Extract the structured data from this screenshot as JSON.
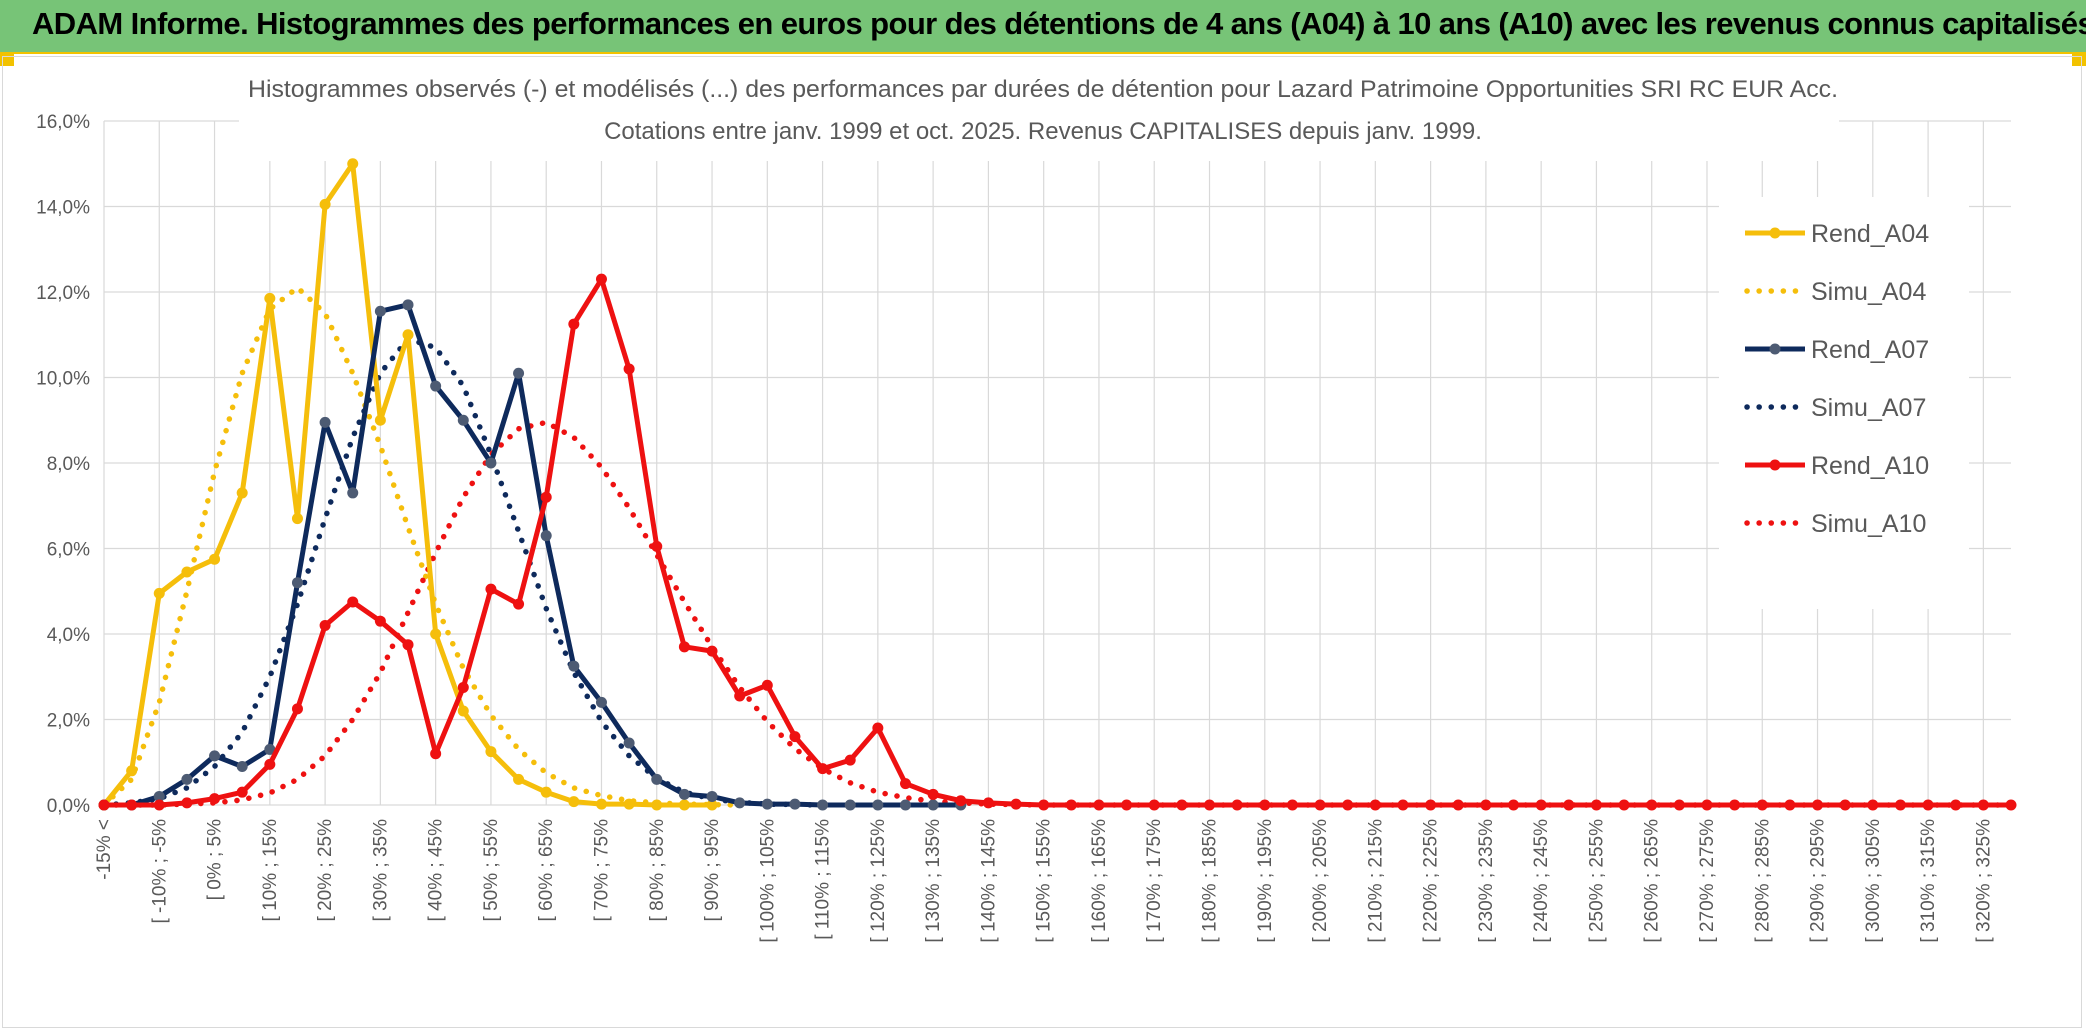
{
  "banner": {
    "title": "ADAM Informe. Histogrammes des performances en euros pour des détentions de 4 ans (A04) à 10 ans (A10) avec les revenus connus capitalisés"
  },
  "colors": {
    "banner_bg": "#77c477",
    "A04": "#f5be0b",
    "A07": "#0e2a5c",
    "A10": "#ee1111",
    "grid": "#d9d9d9",
    "text": "#595959"
  },
  "chart_data": {
    "type": "line",
    "title_line1": "Histogrammes observés (-) et modélisés (...) des performances par durées de détention pour Lazard Patrimoine Opportunities SRI RC EUR Acc.",
    "title_line2": "Cotations entre janv. 1999 et oct. 2025. Revenus CAPITALISES depuis janv. 1999.",
    "ylim": [
      0,
      16
    ],
    "y_ticks": [
      "0,0%",
      "2,0%",
      "4,0%",
      "6,0%",
      "8,0%",
      "10,0%",
      "12,0%",
      "14,0%",
      "16,0%"
    ],
    "grid": true,
    "legend_position": "right",
    "x_labels": [
      "-15% <",
      "[ -10% ; -5%",
      "[ 0% ; 5%",
      "[ 10% ; 15%",
      "[ 20% ; 25%",
      "[ 30% ; 35%",
      "[ 40% ; 45%",
      "[ 50% ; 55%",
      "[ 60% ; 65%",
      "[ 70% ; 75%",
      "[ 80% ; 85%",
      "[ 90% ; 95%",
      "[ 100% ; 105%",
      "[ 110% ; 115%",
      "[ 120% ; 125%",
      "[ 130% ; 135%",
      "[ 140% ; 145%",
      "[ 150% ; 155%",
      "[ 160% ; 165%",
      "[ 170% ; 175%",
      "[ 180% ; 185%",
      "[ 190% ; 195%",
      "[ 200% ; 205%",
      "[ 210% ; 215%",
      "[ 220% ; 225%",
      "[ 230% ; 235%",
      "[ 240% ; 245%",
      "[ 250% ; 255%",
      "[ 260% ; 265%",
      "[ 270% ; 275%",
      "[ 280% ; 285%",
      "[ 290% ; 295%",
      "[ 300% ; 305%",
      "[ 310% ; 315%",
      "[ 320% ; 325%"
    ],
    "categories_count": 70,
    "series": [
      {
        "name": "Rend_A04",
        "style": "solid",
        "color": "#f5be0b",
        "values": [
          0.0,
          0.8,
          4.95,
          5.45,
          5.75,
          7.3,
          11.85,
          6.7,
          14.05,
          15.0,
          9.0,
          11.0,
          4.0,
          2.2,
          1.25,
          0.6,
          0.3,
          0.08,
          0.02,
          0.02,
          0.0,
          0.0,
          0.0
        ]
      },
      {
        "name": "Simu_A04",
        "style": "dotted",
        "color": "#f5be0b",
        "values": [
          0.0,
          0.6,
          2.4,
          5.0,
          7.8,
          10.1,
          11.6,
          12.1,
          11.5,
          10.1,
          8.4,
          6.5,
          4.7,
          3.2,
          2.1,
          1.3,
          0.75,
          0.4,
          0.22,
          0.1,
          0.05,
          0.02,
          0.01,
          0.0
        ]
      },
      {
        "name": "Rend_A07",
        "style": "solid",
        "color": "#0e2a5c",
        "values": [
          0.0,
          0.0,
          0.2,
          0.6,
          1.15,
          0.9,
          1.3,
          5.2,
          8.95,
          7.3,
          11.55,
          11.7,
          9.8,
          9.0,
          8.0,
          10.1,
          6.3,
          3.25,
          2.4,
          1.45,
          0.6,
          0.25,
          0.2,
          0.05,
          0.02,
          0.02,
          0.0,
          0.0,
          0.0,
          0.0,
          0.0,
          0.0
        ]
      },
      {
        "name": "Simu_A07",
        "style": "dotted",
        "color": "#0e2a5c",
        "values": [
          0.0,
          0.05,
          0.15,
          0.4,
          0.9,
          1.7,
          3.0,
          4.7,
          6.7,
          8.6,
          10.1,
          10.9,
          10.7,
          9.8,
          8.2,
          6.4,
          4.6,
          3.1,
          1.95,
          1.15,
          0.62,
          0.3,
          0.14,
          0.06,
          0.02,
          0.01,
          0.0
        ]
      },
      {
        "name": "Rend_A10",
        "style": "solid",
        "color": "#ee1111",
        "values": [
          0.0,
          0.0,
          0.0,
          0.05,
          0.15,
          0.3,
          0.95,
          2.25,
          4.2,
          4.75,
          4.3,
          3.75,
          1.2,
          2.75,
          5.05,
          4.7,
          7.2,
          11.25,
          12.3,
          10.2,
          6.05,
          3.7,
          3.6,
          2.55,
          2.8,
          1.6,
          0.85,
          1.05,
          1.8,
          0.5,
          0.25,
          0.1,
          0.05,
          0.02,
          0.0,
          0.0,
          0.0,
          0.0,
          0.0,
          0.0,
          0.0,
          0.0,
          0.0,
          0.0,
          0.0,
          0.0,
          0.0,
          0.0,
          0.0,
          0.0,
          0.0,
          0.0,
          0.0,
          0.0,
          0.0,
          0.0,
          0.0,
          0.0,
          0.0,
          0.0,
          0.0,
          0.0,
          0.0,
          0.0,
          0.0,
          0.0,
          0.0,
          0.0,
          0.0,
          0.0
        ]
      },
      {
        "name": "Simu_A10",
        "style": "dotted",
        "color": "#ee1111",
        "values": [
          0.0,
          0.0,
          0.0,
          0.02,
          0.05,
          0.12,
          0.28,
          0.6,
          1.15,
          2.0,
          3.1,
          4.5,
          5.9,
          7.2,
          8.2,
          8.8,
          8.95,
          8.6,
          7.9,
          6.95,
          5.85,
          4.75,
          3.7,
          2.75,
          1.95,
          1.32,
          0.85,
          0.52,
          0.3,
          0.17,
          0.09,
          0.05,
          0.02,
          0.01,
          0.0,
          0.0,
          0.0,
          0.0,
          0.0,
          0.0,
          0.0,
          0.0,
          0.0,
          0.0,
          0.0,
          0.0,
          0.0,
          0.0,
          0.0,
          0.0,
          0.0,
          0.0,
          0.0,
          0.0,
          0.0,
          0.0,
          0.0,
          0.0,
          0.0,
          0.0,
          0.0,
          0.0,
          0.0,
          0.0,
          0.0,
          0.0,
          0.0,
          0.0,
          0.0,
          0.0
        ]
      }
    ]
  }
}
